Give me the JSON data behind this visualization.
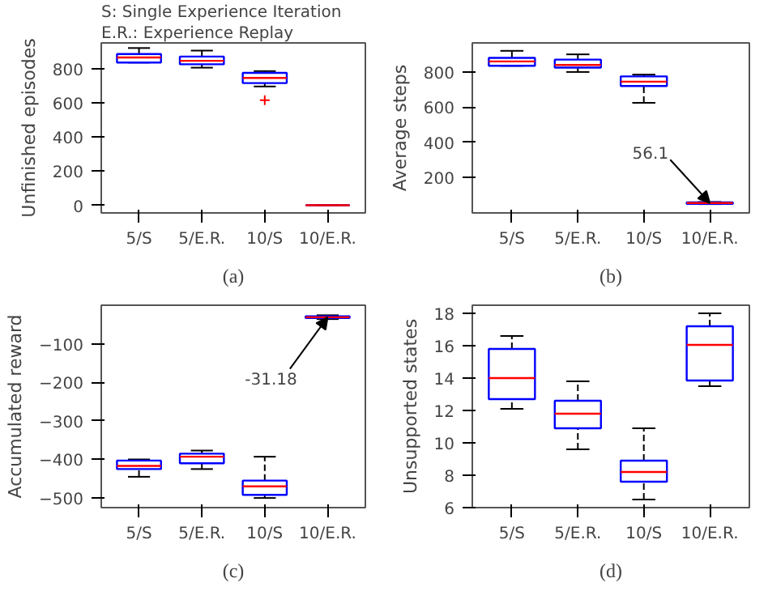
{
  "chart_data": [
    {
      "type": "box",
      "title": "(a)",
      "ylabel": "Unfinished episodes",
      "categories": [
        "5/S",
        "5/E.R.",
        "10/S",
        "10/E.R."
      ],
      "color": "#0000ff",
      "ylim": [
        -45,
        950
      ],
      "yticks": [
        0,
        200,
        400,
        600,
        800
      ],
      "boxes": [
        {
          "low": 835,
          "q1": 835,
          "median": 865,
          "q3": 885,
          "high": 920
        },
        {
          "low": 805,
          "q1": 825,
          "median": 845,
          "q3": 870,
          "high": 905
        },
        {
          "low": 695,
          "q1": 715,
          "median": 745,
          "q3": 775,
          "high": 785,
          "outliers": [
            615
          ]
        },
        {
          "low": 0,
          "q1": 0,
          "median": 0,
          "q3": 0,
          "high": 0
        }
      ],
      "annotations": [
        "S: Single Experience Iteration",
        "E.R.: Experience Replay"
      ]
    },
    {
      "type": "box",
      "title": "(b)",
      "ylabel": "Average steps",
      "categories": [
        "5/S",
        "5/E.R.",
        "10/S",
        "10/E.R."
      ],
      "color": "#0000ff",
      "ylim": [
        0,
        965
      ],
      "yticks": [
        200,
        400,
        600,
        800
      ],
      "boxes": [
        {
          "low": 835,
          "q1": 835,
          "median": 860,
          "q3": 880,
          "high": 920
        },
        {
          "low": 800,
          "q1": 825,
          "median": 840,
          "q3": 870,
          "high": 900
        },
        {
          "low": 625,
          "q1": 720,
          "median": 745,
          "q3": 775,
          "high": 785
        },
        {
          "low": 50,
          "q1": 52,
          "median": 56.1,
          "q3": 60,
          "high": 62
        }
      ],
      "annotations": [
        {
          "text": "56.1",
          "x": "10/E.R.",
          "y": 56.1
        }
      ]
    },
    {
      "type": "box",
      "title": "(c)",
      "ylabel": "Accumulated reward",
      "categories": [
        "5/S",
        "5/E.R.",
        "10/S",
        "10/E.R."
      ],
      "color": "#0000ff",
      "ylim": [
        -525,
        0
      ],
      "yticks": [
        -100,
        -200,
        -300,
        -400,
        -500
      ],
      "boxes": [
        {
          "low": -445,
          "q1": -425,
          "median": -417,
          "q3": -403,
          "high": -400
        },
        {
          "low": -425,
          "q1": -410,
          "median": -393,
          "q3": -385,
          "high": -377
        },
        {
          "low": -500,
          "q1": -492,
          "median": -470,
          "q3": -455,
          "high": -393
        },
        {
          "low": -36,
          "q1": -33,
          "median": -31.18,
          "q3": -29,
          "high": -26
        }
      ],
      "annotations": [
        {
          "text": "-31.18",
          "x": "10/E.R.",
          "y": -31.18
        }
      ]
    },
    {
      "type": "box",
      "title": "(d)",
      "ylabel": "Unsupported states",
      "categories": [
        "5/S",
        "5/E.R.",
        "10/S",
        "10/E.R."
      ],
      "color": "#0000ff",
      "ylim": [
        6,
        18.5
      ],
      "yticks": [
        6,
        8,
        10,
        12,
        14,
        16,
        18
      ],
      "boxes": [
        {
          "low": 12.1,
          "q1": 12.7,
          "median": 14,
          "q3": 15.8,
          "high": 16.6
        },
        {
          "low": 9.6,
          "q1": 10.9,
          "median": 11.8,
          "q3": 12.6,
          "high": 13.8
        },
        {
          "low": 6.5,
          "q1": 7.6,
          "median": 8.2,
          "q3": 8.9,
          "high": 10.9
        },
        {
          "low": 13.5,
          "q1": 13.85,
          "median": 16.05,
          "q3": 17.2,
          "high": 18
        }
      ]
    }
  ]
}
